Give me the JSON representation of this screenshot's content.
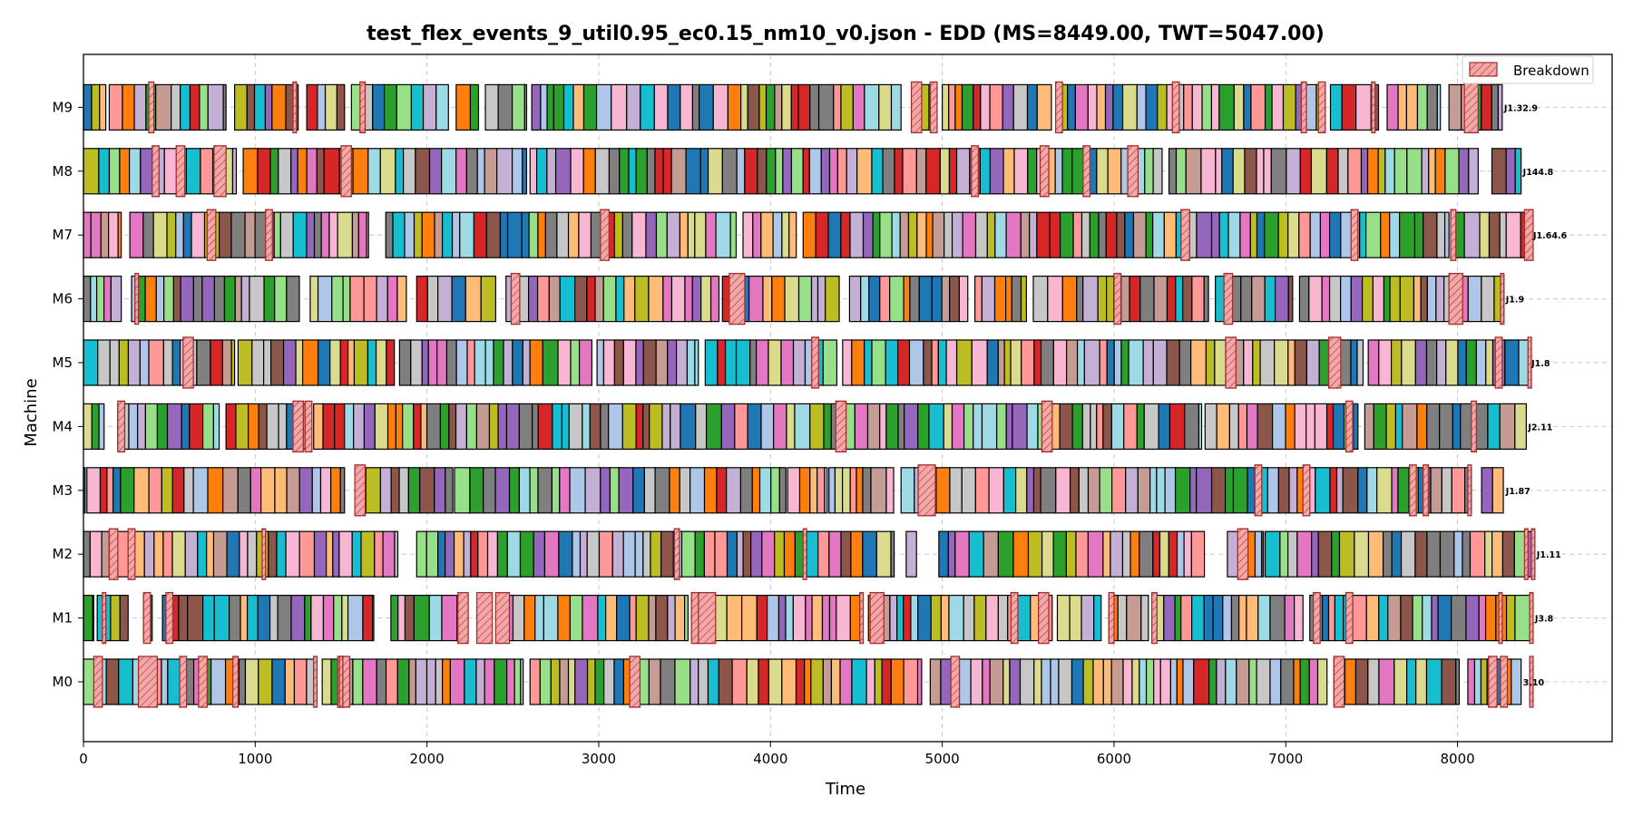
{
  "chart_data": {
    "type": "gantt",
    "title": "test_flex_events_9_util0.95_ec0.15_nm10_v0.json - EDD (MS=8449.00, TWT=5047.00)",
    "xlabel": "Time",
    "ylabel": "Machine",
    "xlim": [
      0,
      8900
    ],
    "x_ticks": [
      0,
      1000,
      2000,
      3000,
      4000,
      5000,
      6000,
      7000,
      8000
    ],
    "x_tick_labels": [
      "0",
      "1000",
      "2000",
      "3000",
      "4000",
      "5000",
      "6000",
      "7000",
      "8000"
    ],
    "grid": "dashed",
    "legend": {
      "position": "top-right",
      "entries": [
        {
          "label": "Breakdown",
          "color": "#f4a7a7",
          "edge": "#a03030",
          "hatch": "//"
        }
      ]
    },
    "makespan": 8449.0,
    "twt": 5047.0,
    "machines": [
      {
        "name": "M0",
        "end": 8370,
        "gaps": [
          [
            330,
            370
          ],
          [
            1340,
            1390
          ],
          [
            2560,
            2600
          ],
          [
            4880,
            4930
          ],
          [
            7240,
            7280
          ],
          [
            8010,
            8060
          ]
        ],
        "breakdowns": [
          [
            60,
            110
          ],
          [
            320,
            430
          ],
          [
            560,
            600
          ],
          [
            670,
            720
          ],
          [
            870,
            900
          ],
          [
            1490,
            1520
          ],
          [
            1480,
            1550
          ],
          [
            1340,
            1360
          ],
          [
            1490,
            1510
          ],
          [
            3180,
            3240
          ],
          [
            5050,
            5100
          ],
          [
            7280,
            7340
          ],
          [
            8180,
            8230
          ],
          [
            8250,
            8290
          ],
          [
            8420,
            8440
          ]
        ],
        "end_labels": [
          "J1.10",
          "3.10"
        ]
      },
      {
        "name": "M1",
        "end": 8440,
        "gaps": [
          [
            60,
            80
          ],
          [
            260,
            350
          ],
          [
            400,
            460
          ],
          [
            1690,
            1790
          ],
          [
            2220,
            2420
          ],
          [
            3520,
            3540
          ],
          [
            4520,
            4570
          ],
          [
            5640,
            5670
          ],
          [
            5930,
            5970
          ],
          [
            6200,
            6240
          ],
          [
            7100,
            7140
          ]
        ],
        "breakdowns": [
          [
            110,
            130
          ],
          [
            350,
            390
          ],
          [
            480,
            520
          ],
          [
            2180,
            2240
          ],
          [
            2290,
            2380
          ],
          [
            2400,
            2480
          ],
          [
            3540,
            3590
          ],
          [
            3580,
            3680
          ],
          [
            4520,
            4540
          ],
          [
            4580,
            4660
          ],
          [
            5400,
            5440
          ],
          [
            5560,
            5620
          ],
          [
            5970,
            6000
          ],
          [
            6220,
            6250
          ],
          [
            7160,
            7200
          ],
          [
            7350,
            7390
          ],
          [
            8240,
            8260
          ],
          [
            8420,
            8440
          ]
        ],
        "end_labels": [
          "J3.8"
        ]
      },
      {
        "name": "M2",
        "end": 8450,
        "gaps": [
          [
            150,
            160
          ],
          [
            1830,
            1940
          ],
          [
            4720,
            4790
          ],
          [
            4850,
            4980
          ],
          [
            6530,
            6660
          ],
          [
            6870,
            6880
          ]
        ],
        "breakdowns": [
          [
            150,
            200
          ],
          [
            260,
            300
          ],
          [
            1040,
            1060
          ],
          [
            3440,
            3470
          ],
          [
            4190,
            4210
          ],
          [
            6720,
            6780
          ],
          [
            8390,
            8410
          ],
          [
            8430,
            8450
          ]
        ],
        "end_labels": [
          "J1.11"
        ]
      },
      {
        "name": "M3",
        "end": 8270,
        "gaps": [
          [
            10,
            20
          ],
          [
            1520,
            1580
          ],
          [
            2150,
            2160
          ],
          [
            4090,
            4100
          ],
          [
            4330,
            4340
          ],
          [
            4720,
            4760
          ],
          [
            8080,
            8140
          ]
        ],
        "breakdowns": [
          [
            1580,
            1640
          ],
          [
            4860,
            4960
          ],
          [
            6820,
            6860
          ],
          [
            7100,
            7140
          ],
          [
            7720,
            7760
          ],
          [
            7800,
            7830
          ],
          [
            8060,
            8080
          ]
        ],
        "end_labels": [
          "J1.87"
        ]
      },
      {
        "name": "M4",
        "end": 8400,
        "gaps": [
          [
            120,
            200
          ],
          [
            790,
            830
          ],
          [
            1310,
            1340
          ],
          [
            6510,
            6530
          ],
          [
            7420,
            7460
          ]
        ],
        "breakdowns": [
          [
            200,
            240
          ],
          [
            1220,
            1280
          ],
          [
            1290,
            1330
          ],
          [
            4380,
            4440
          ],
          [
            5580,
            5640
          ],
          [
            7350,
            7390
          ],
          [
            8080,
            8110
          ]
        ],
        "end_labels": [
          "J2.11"
        ]
      },
      {
        "name": "M5",
        "end": 8420,
        "gaps": [
          [
            880,
            900
          ],
          [
            1810,
            1840
          ],
          [
            2960,
            2990
          ],
          [
            3580,
            3620
          ],
          [
            4390,
            4420
          ],
          [
            6650,
            6700
          ],
          [
            7450,
            7480
          ]
        ],
        "breakdowns": [
          [
            580,
            640
          ],
          [
            4240,
            4280
          ],
          [
            6650,
            6710
          ],
          [
            7250,
            7320
          ],
          [
            8220,
            8260
          ],
          [
            8410,
            8430
          ]
        ],
        "end_labels": [
          "J1.8"
        ]
      },
      {
        "name": "M6",
        "end": 8270,
        "gaps": [
          [
            220,
            280
          ],
          [
            1260,
            1320
          ],
          [
            1880,
            1940
          ],
          [
            2400,
            2460
          ],
          [
            3700,
            3720
          ],
          [
            4400,
            4460
          ],
          [
            5150,
            5190
          ],
          [
            5490,
            5530
          ],
          [
            6550,
            6590
          ],
          [
            7040,
            7080
          ]
        ],
        "breakdowns": [
          [
            300,
            320
          ],
          [
            2490,
            2540
          ],
          [
            3760,
            3850
          ],
          [
            6000,
            6040
          ],
          [
            6640,
            6690
          ],
          [
            7950,
            8030
          ],
          [
            8250,
            8270
          ]
        ],
        "end_labels": [
          "J1.9"
        ]
      },
      {
        "name": "M7",
        "end": 8430,
        "gaps": [
          [
            220,
            270
          ],
          [
            1660,
            1760
          ],
          [
            3800,
            3840
          ],
          [
            4150,
            4190
          ],
          [
            7950,
            7970
          ]
        ],
        "breakdowns": [
          [
            720,
            770
          ],
          [
            1060,
            1100
          ],
          [
            3010,
            3060
          ],
          [
            6390,
            6440
          ],
          [
            7380,
            7420
          ],
          [
            7960,
            7990
          ],
          [
            8390,
            8440
          ]
        ],
        "end_labels": [
          "J1.64.6"
        ]
      },
      {
        "name": "M8",
        "end": 8370,
        "gaps": [
          [
            890,
            930
          ],
          [
            2580,
            2600
          ],
          [
            6280,
            6320
          ],
          [
            8120,
            8200
          ]
        ],
        "breakdowns": [
          [
            400,
            440
          ],
          [
            540,
            590
          ],
          [
            760,
            830
          ],
          [
            1500,
            1560
          ],
          [
            5170,
            5210
          ],
          [
            5570,
            5620
          ],
          [
            5820,
            5860
          ],
          [
            6080,
            6140
          ]
        ],
        "end_labels": [
          "J144.8"
        ]
      },
      {
        "name": "M9",
        "end": 8260,
        "gaps": [
          [
            130,
            150
          ],
          [
            830,
            880
          ],
          [
            1250,
            1300
          ],
          [
            1520,
            1560
          ],
          [
            2130,
            2170
          ],
          [
            2300,
            2340
          ],
          [
            2580,
            2610
          ],
          [
            4760,
            4870
          ],
          [
            4950,
            5000
          ],
          [
            5640,
            5690
          ],
          [
            7230,
            7260
          ],
          [
            7540,
            7590
          ],
          [
            7900,
            7950
          ]
        ],
        "breakdowns": [
          [
            380,
            410
          ],
          [
            1220,
            1240
          ],
          [
            1610,
            1640
          ],
          [
            4820,
            4880
          ],
          [
            4930,
            4970
          ],
          [
            5660,
            5700
          ],
          [
            6340,
            6380
          ],
          [
            7090,
            7120
          ],
          [
            7190,
            7230
          ],
          [
            7500,
            7520
          ],
          [
            8040,
            8120
          ]
        ],
        "end_labels": [
          "J1.32.9"
        ]
      }
    ]
  }
}
